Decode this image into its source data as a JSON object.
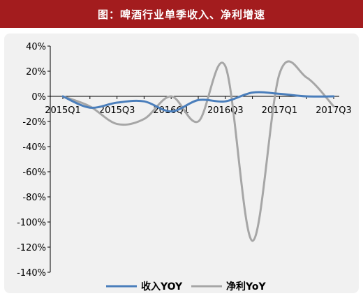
{
  "title": "图：啤酒行业单季收入、净利增速",
  "chart_data": {
    "type": "line",
    "title": "图：啤酒行业单季收入、净利增速",
    "x": [
      "2015Q1",
      "2015Q2",
      "2015Q3",
      "2015Q4",
      "2016Q1",
      "2016Q2",
      "2016Q3",
      "2016Q4",
      "2017Q1",
      "2017Q2",
      "2017Q3"
    ],
    "xticks": [
      "2015Q1",
      "2015Q3",
      "2016Q1",
      "2016Q3",
      "2017Q1",
      "2017Q3"
    ],
    "ylim": [
      -140,
      40
    ],
    "yticks": [
      40,
      20,
      0,
      -20,
      -40,
      -60,
      -80,
      -100,
      -120,
      -140
    ],
    "ytick_labels": [
      "40%",
      "20%",
      "0%",
      "-20%",
      "-40%",
      "-60%",
      "-80%",
      "-100%",
      "-120%",
      "-140%"
    ],
    "series": [
      {
        "name": "收入YOY",
        "color": "#4a7ebb",
        "values": [
          0,
          -9,
          -5,
          -4,
          -12,
          -3,
          -4,
          3,
          2,
          0,
          0
        ]
      },
      {
        "name": "净利YoY",
        "color": "#a6a6a6",
        "values": [
          0,
          -8,
          -22,
          -18,
          0,
          -20,
          24,
          -115,
          18,
          15,
          -8
        ]
      }
    ],
    "legend_position": "bottom",
    "grid": false
  }
}
